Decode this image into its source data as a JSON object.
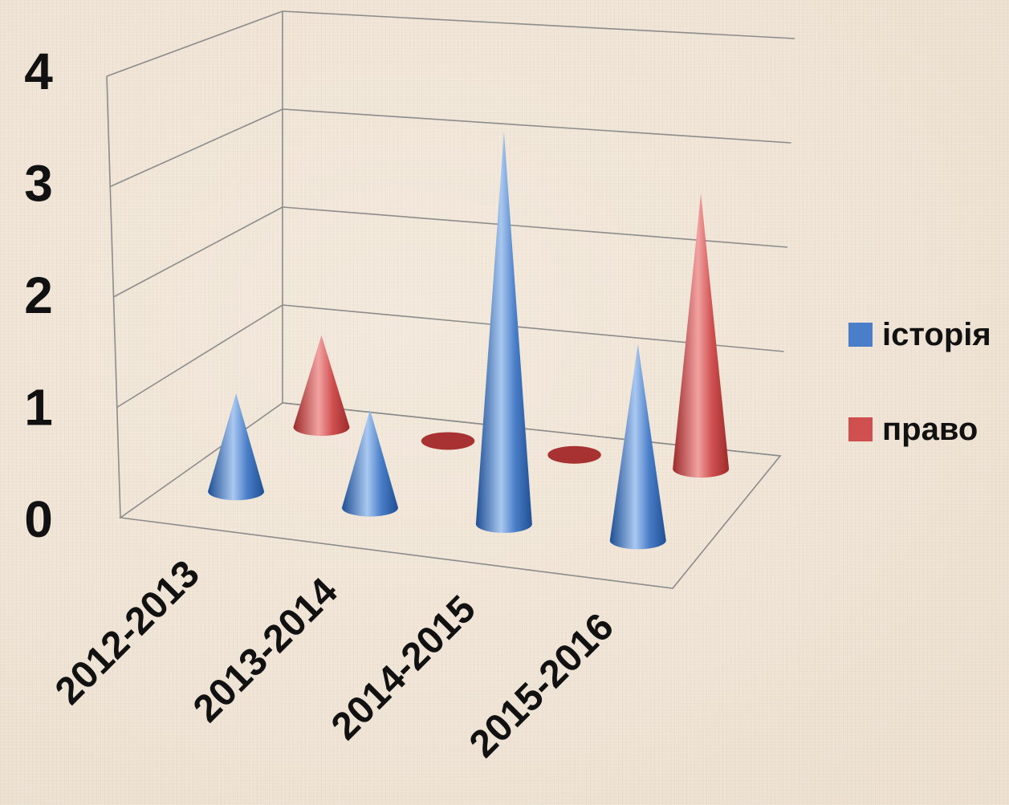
{
  "chart_data": {
    "type": "bar",
    "style": "3d-cone",
    "categories": [
      "2012-2013",
      "2013-2014",
      "2014-2015",
      "2015-2016"
    ],
    "series": [
      {
        "name": "історія",
        "values": [
          1,
          1,
          4,
          2
        ],
        "color": "#4a7ec8"
      },
      {
        "name": "право",
        "values": [
          1,
          0,
          0,
          3
        ],
        "color": "#d05050"
      }
    ],
    "y_ticks": [
      "0",
      "1",
      "2",
      "3",
      "4"
    ],
    "ylim": [
      0,
      4
    ],
    "grid": true,
    "legend_position": "right",
    "title": "",
    "xlabel": "",
    "ylabel": ""
  }
}
